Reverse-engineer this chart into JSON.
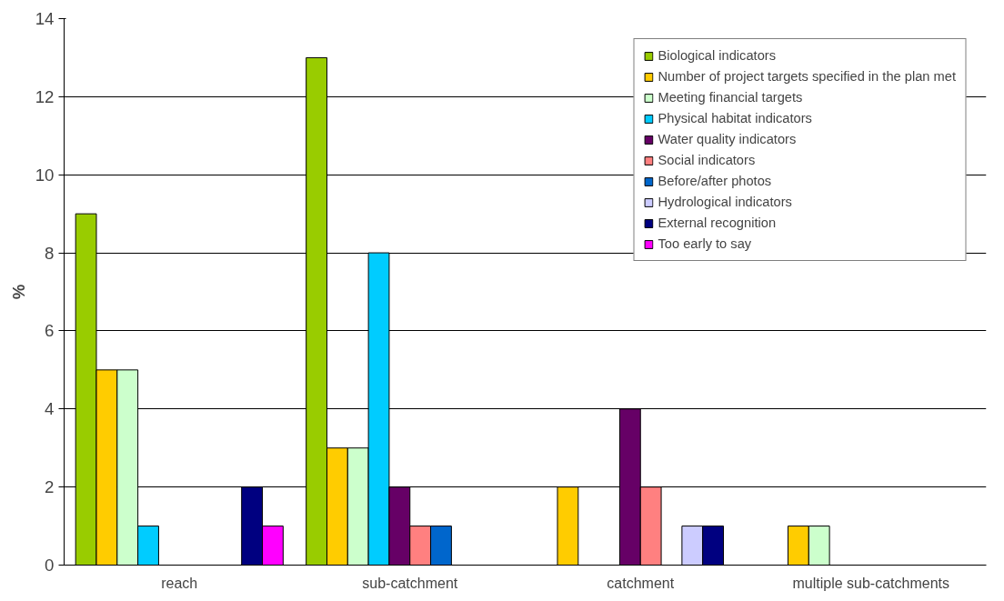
{
  "chart_data": {
    "type": "bar",
    "ylabel": "%",
    "categories": [
      "reach",
      "sub-catchment",
      "catchment",
      "multiple sub-catchments"
    ],
    "ylim": [
      0,
      14
    ],
    "yticks": [
      0,
      2,
      4,
      6,
      8,
      10,
      12,
      14
    ],
    "grid": "y",
    "legend": "top right",
    "series": [
      {
        "name": "Biological indicators",
        "color": "#99cc00",
        "values": [
          9,
          13,
          null,
          null
        ]
      },
      {
        "name": "Number of project targets specified in the plan met",
        "color": "#ffcc00",
        "values": [
          5,
          3,
          2,
          1
        ]
      },
      {
        "name": "Meeting financial targets",
        "color": "#ccffcc",
        "values": [
          5,
          3,
          null,
          1
        ]
      },
      {
        "name": "Physical habitat indicators",
        "color": "#00ccff",
        "values": [
          1,
          8,
          null,
          null
        ]
      },
      {
        "name": "Water quality indicators",
        "color": "#660066",
        "values": [
          null,
          2,
          4,
          null
        ]
      },
      {
        "name": "Social indicators",
        "color": "#ff8080",
        "values": [
          null,
          1,
          2,
          null
        ]
      },
      {
        "name": "Before/after photos",
        "color": "#0066cc",
        "values": [
          null,
          1,
          null,
          null
        ]
      },
      {
        "name": "Hydrological indicators",
        "color": "#ccccff",
        "values": [
          null,
          null,
          1,
          null
        ]
      },
      {
        "name": "External recognition",
        "color": "#000080",
        "values": [
          2,
          null,
          1,
          null
        ]
      },
      {
        "name": "Too early to say",
        "color": "#ff00ff",
        "values": [
          1,
          null,
          null,
          null
        ]
      }
    ]
  }
}
